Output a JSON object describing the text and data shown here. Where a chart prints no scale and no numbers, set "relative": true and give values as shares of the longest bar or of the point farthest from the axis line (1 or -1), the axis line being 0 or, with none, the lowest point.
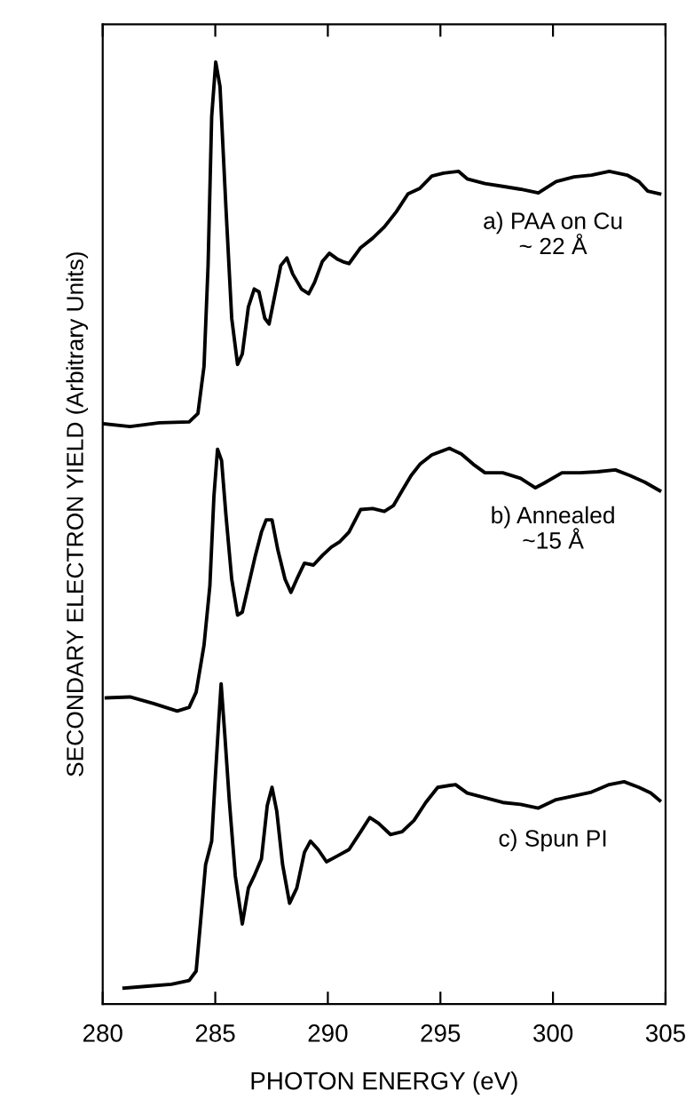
{
  "chart_data": {
    "type": "line",
    "relative": true,
    "xlabel": "PHOTON ENERGY (eV)",
    "ylabel": "SECONDARY ELECTRON YIELD (Arbitrary Units)",
    "xlim": [
      280,
      305
    ],
    "xticks": [
      280,
      285,
      290,
      295,
      300,
      305
    ],
    "grid": false,
    "legend": false,
    "marker": "none",
    "line_style": "solid",
    "series": [
      {
        "name": "a) PAA on Cu\n~ 22 Å",
        "color": "#000000",
        "x": [
          280.03,
          281.21,
          282.52,
          283.84,
          284.23,
          284.5,
          284.68,
          284.84,
          285.02,
          285.21,
          285.47,
          285.73,
          285.99,
          286.2,
          286.47,
          286.73,
          286.94,
          287.2,
          287.39,
          287.65,
          287.91,
          288.18,
          288.44,
          288.83,
          289.15,
          289.41,
          289.75,
          290.07,
          290.41,
          290.67,
          290.94,
          291.46,
          291.99,
          292.51,
          293.04,
          293.56,
          294.09,
          294.62,
          295.14,
          295.8,
          296.19,
          296.98,
          297.77,
          298.56,
          299.35,
          300.14,
          300.93,
          301.71,
          302.5,
          303.29,
          303.82,
          304.21,
          304.74
        ],
        "values": [
          0.616,
          0.613,
          0.617,
          0.618,
          0.627,
          0.677,
          0.784,
          0.942,
          1.0,
          0.974,
          0.847,
          0.728,
          0.679,
          0.69,
          0.74,
          0.759,
          0.756,
          0.728,
          0.722,
          0.753,
          0.784,
          0.792,
          0.775,
          0.759,
          0.754,
          0.766,
          0.788,
          0.797,
          0.791,
          0.788,
          0.786,
          0.803,
          0.813,
          0.825,
          0.841,
          0.86,
          0.866,
          0.879,
          0.882,
          0.884,
          0.876,
          0.871,
          0.868,
          0.865,
          0.861,
          0.873,
          0.878,
          0.88,
          0.884,
          0.88,
          0.873,
          0.863,
          0.86
        ]
      },
      {
        "name": "b) Annealed\n~15 Å",
        "color": "#000000",
        "x": [
          280.16,
          281.21,
          282.26,
          283.31,
          283.84,
          284.15,
          284.5,
          284.76,
          284.94,
          285.1,
          285.28,
          285.47,
          285.73,
          285.99,
          286.2,
          286.47,
          286.78,
          287.05,
          287.26,
          287.52,
          287.78,
          288.1,
          288.36,
          288.62,
          288.96,
          289.36,
          289.75,
          290.15,
          290.54,
          290.94,
          291.46,
          291.99,
          292.51,
          292.91,
          293.3,
          293.7,
          294.09,
          294.62,
          295.4,
          295.93,
          296.46,
          296.98,
          297.77,
          298.56,
          299.22,
          299.61,
          300.4,
          301.19,
          301.98,
          302.77,
          303.42,
          304.08,
          304.74
        ],
        "values": [
          0.325,
          0.326,
          0.319,
          0.311,
          0.315,
          0.331,
          0.381,
          0.444,
          0.539,
          0.589,
          0.577,
          0.52,
          0.451,
          0.413,
          0.416,
          0.444,
          0.476,
          0.501,
          0.514,
          0.514,
          0.482,
          0.451,
          0.437,
          0.451,
          0.468,
          0.466,
          0.476,
          0.485,
          0.491,
          0.501,
          0.525,
          0.526,
          0.523,
          0.529,
          0.545,
          0.561,
          0.573,
          0.583,
          0.59,
          0.584,
          0.573,
          0.564,
          0.564,
          0.558,
          0.548,
          0.553,
          0.564,
          0.564,
          0.565,
          0.567,
          0.561,
          0.554,
          0.545
        ]
      },
      {
        "name": "c) Spun PI",
        "color": "#000000",
        "x": [
          280.95,
          282.0,
          283.05,
          283.84,
          284.15,
          284.36,
          284.57,
          284.84,
          284.99,
          285.15,
          285.26,
          285.42,
          285.62,
          285.89,
          286.2,
          286.47,
          286.73,
          287.05,
          287.31,
          287.52,
          287.73,
          287.99,
          288.3,
          288.62,
          288.96,
          289.23,
          289.57,
          289.94,
          290.41,
          290.94,
          291.46,
          291.86,
          292.25,
          292.78,
          293.3,
          293.83,
          294.35,
          294.88,
          295.67,
          296.19,
          296.98,
          297.77,
          298.56,
          299.35,
          300.14,
          300.93,
          301.71,
          302.5,
          303.16,
          303.82,
          304.34,
          304.74
        ],
        "values": [
          0.017,
          0.019,
          0.021,
          0.025,
          0.035,
          0.091,
          0.148,
          0.173,
          0.236,
          0.299,
          0.34,
          0.287,
          0.217,
          0.136,
          0.085,
          0.123,
          0.136,
          0.154,
          0.211,
          0.23,
          0.205,
          0.148,
          0.107,
          0.123,
          0.161,
          0.173,
          0.164,
          0.151,
          0.157,
          0.164,
          0.183,
          0.198,
          0.192,
          0.18,
          0.183,
          0.195,
          0.214,
          0.23,
          0.233,
          0.224,
          0.219,
          0.214,
          0.212,
          0.208,
          0.217,
          0.221,
          0.225,
          0.233,
          0.236,
          0.23,
          0.224,
          0.216
        ]
      }
    ]
  }
}
